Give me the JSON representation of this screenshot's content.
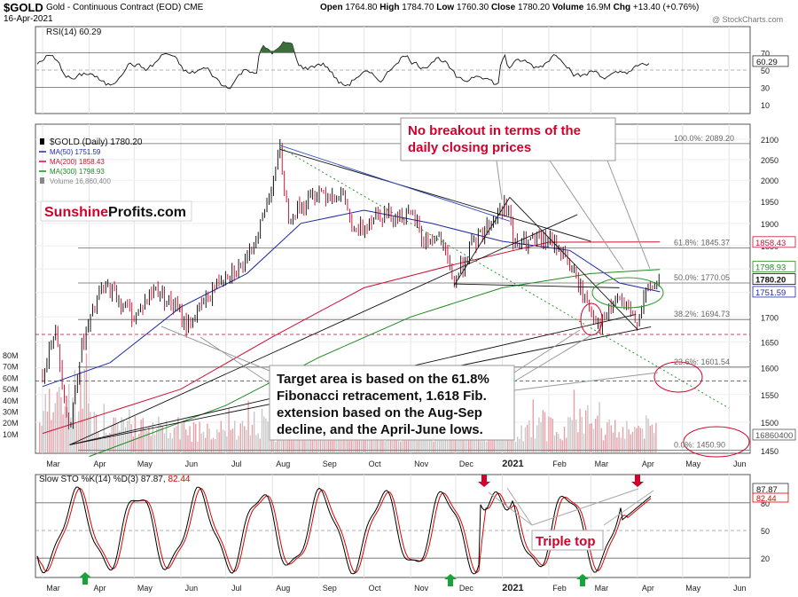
{
  "header": {
    "symbol": "$GOLD",
    "description": "Gold - Continuous Contract (EOD)",
    "exchange": "CME",
    "date": "16-Apr-2021",
    "watermark": "@ StockCharts.com",
    "quote": {
      "open_label": "Open",
      "open": "1764.80",
      "high_label": "High",
      "high": "1784.70",
      "low_label": "Low",
      "low": "1760.30",
      "close_label": "Close",
      "close": "1780.20",
      "volume_label": "Volume",
      "volume": "16.9M",
      "chg_label": "Chg",
      "chg": "+13.40 (+0.76%)"
    }
  },
  "brand": {
    "part1": "Sunshine",
    "part2": "Profits.com"
  },
  "annotations": {
    "breakout_line1": "No breakout in terms of the",
    "breakout_line2": "daily closing prices",
    "target_lines": [
      "Target area is based on the 61.8%",
      "Fibonacci retracement, 1.618 Fib.",
      "extension based on the Aug-Sep",
      "decline, and the April-June lows."
    ],
    "triple_top": "Triple top"
  },
  "colors": {
    "price_up": "#000000",
    "price_down": "#cc0022",
    "ma50": "#1c2aa6",
    "ma200": "#cc1133",
    "ma300": "#1f8a1f",
    "volume": "#c8c8c8",
    "volume_red": "#e8a0a8",
    "annotation_red": "#d2002a",
    "rsi_fill": "#3b6e3b",
    "sto_k": "#000000",
    "sto_d": "#e00000",
    "arrow_green": "#1aa33a"
  },
  "rsi_panel": {
    "legend": "RSI(14) 60.29",
    "ticks": [
      "70",
      "50",
      "30",
      "10"
    ],
    "last_value": "60.29"
  },
  "sto_panel": {
    "legend_prefix": "Slow STO %K(14) %D(3)",
    "k_value": "87.87",
    "d_value": "82.44",
    "ticks": [
      "80",
      "50",
      "20"
    ]
  },
  "chart_data": {
    "type": "line",
    "title": "$GOLD (Daily) 1780.20",
    "x_range": [
      "2020-03",
      "2021-06"
    ],
    "ylim": [
      1450,
      2100
    ],
    "log_scale": true,
    "grid": true,
    "legend_placement": "top-left",
    "legend": [
      {
        "label": "$GOLD (Daily) 1780.20",
        "color": "#000000",
        "marker": "candle"
      },
      {
        "label": "MA(50) 1751.59",
        "color": "#1c2aa6",
        "marker": "line"
      },
      {
        "label": "MA(200) 1858.43",
        "color": "#cc1133",
        "marker": "line"
      },
      {
        "label": "MA(300) 1798.93",
        "color": "#1f8a1f",
        "marker": "line"
      },
      {
        "label": "Volume 16,860,400",
        "color": "#888888",
        "marker": "bar"
      }
    ],
    "price_ticks": [
      "2100",
      "2050",
      "2000",
      "1950",
      "1900",
      "1850",
      "1800",
      "1750",
      "1700",
      "1650",
      "1600",
      "1550",
      "1500",
      "1450"
    ],
    "volume_ticks": [
      "80M",
      "70M",
      "60M",
      "50M",
      "40M",
      "30M",
      "20M",
      "10M"
    ],
    "x_tick_labels": [
      "Mar",
      "Apr",
      "May",
      "Jun",
      "Jul",
      "Aug",
      "Sep",
      "Oct",
      "Nov",
      "Dec",
      "2021",
      "Feb",
      "Mar",
      "Apr",
      "May",
      "Jun"
    ],
    "right_value_labels": [
      "1858.43",
      "1798.93",
      "1780.20",
      "1751.59",
      "16860400"
    ],
    "fibonacci_levels": [
      {
        "label": "100.0%: 2089.20",
        "value": 2089.2
      },
      {
        "label": "61.8%: 1845.37",
        "value": 1845.37
      },
      {
        "label": "50.0%: 1770.05",
        "value": 1770.05
      },
      {
        "label": "38.2%: 1694.73",
        "value": 1694.73
      },
      {
        "label": "23.6%: 1601.54",
        "value": 1601.54
      },
      {
        "label": "0.0%: 1450.90",
        "value": 1450.9
      }
    ],
    "series": [
      {
        "name": "$GOLD (Daily) 1780.20",
        "x": [
          "2020-03-01",
          "2020-03-09",
          "2020-03-19",
          "2020-03-26",
          "2020-04-08",
          "2020-04-14",
          "2020-04-22",
          "2020-05-01",
          "2020-05-15",
          "2020-05-28",
          "2020-06-05",
          "2020-06-19",
          "2020-06-30",
          "2020-07-15",
          "2020-07-27",
          "2020-08-06",
          "2020-08-11",
          "2020-08-21",
          "2020-09-01",
          "2020-09-18",
          "2020-09-24",
          "2020-10-09",
          "2020-10-21",
          "2020-11-04",
          "2020-11-09",
          "2020-11-20",
          "2020-11-30",
          "2020-12-10",
          "2020-12-21",
          "2021-01-05",
          "2021-01-08",
          "2021-01-22",
          "2021-02-01",
          "2021-02-10",
          "2021-02-26",
          "2021-03-08",
          "2021-03-18",
          "2021-03-31",
          "2021-04-06",
          "2021-04-16"
        ],
        "values": [
          1590,
          1680,
          1480,
          1630,
          1750,
          1760,
          1730,
          1700,
          1760,
          1720,
          1680,
          1740,
          1790,
          1810,
          1930,
          2070,
          1920,
          1940,
          1975,
          1960,
          1870,
          1925,
          1920,
          1910,
          1860,
          1870,
          1770,
          1840,
          1890,
          1950,
          1850,
          1860,
          1860,
          1840,
          1730,
          1680,
          1740,
          1690,
          1745,
          1780
        ]
      },
      {
        "name": "MA(50) 1751.59",
        "x": [
          "2020-03-01",
          "2020-04-15",
          "2020-06-01",
          "2020-07-15",
          "2020-08-20",
          "2020-10-01",
          "2020-11-15",
          "2021-01-01",
          "2021-02-15",
          "2021-03-20",
          "2021-04-16"
        ],
        "values": [
          1565,
          1610,
          1720,
          1790,
          1900,
          1930,
          1900,
          1860,
          1840,
          1770,
          1751.59
        ]
      },
      {
        "name": "MA(200) 1858.43",
        "x": [
          "2020-03-01",
          "2020-06-01",
          "2020-08-01",
          "2020-10-01",
          "2020-12-01",
          "2021-02-01",
          "2021-04-16"
        ],
        "values": [
          1480,
          1560,
          1660,
          1760,
          1810,
          1858,
          1858.43
        ]
      },
      {
        "name": "MA(300) 1798.93",
        "x": [
          "2020-04-01",
          "2020-07-01",
          "2020-09-01",
          "2020-11-01",
          "2021-01-01",
          "2021-03-01",
          "2021-04-16"
        ],
        "values": [
          1440,
          1530,
          1620,
          1700,
          1760,
          1790,
          1798.93
        ]
      }
    ]
  }
}
